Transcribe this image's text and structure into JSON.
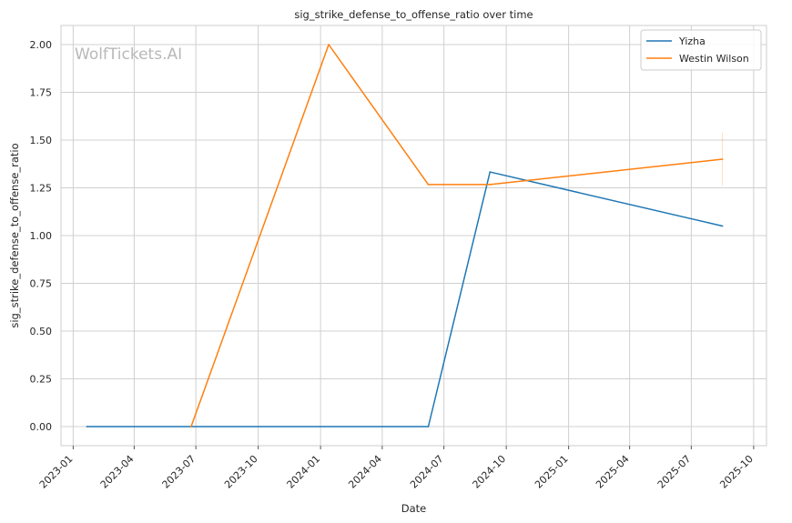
{
  "watermark": "WolfTickets.AI",
  "chart_data": {
    "type": "line",
    "title": "sig_strike_defense_to_offense_ratio over time",
    "xlabel": "Date",
    "ylabel": "sig_strike_defense_to_offense_ratio",
    "x_ticks": [
      "2023-01",
      "2023-04",
      "2023-07",
      "2023-10",
      "2024-01",
      "2024-04",
      "2024-07",
      "2024-10",
      "2025-01",
      "2025-04",
      "2025-07",
      "2025-10"
    ],
    "y_ticks": [
      "0.00",
      "0.25",
      "0.50",
      "0.75",
      "1.00",
      "1.25",
      "1.50",
      "1.75",
      "2.00"
    ],
    "xlim": [
      "2022-12-14",
      "2025-10-20"
    ],
    "ylim": [
      -0.1,
      2.1
    ],
    "grid": true,
    "legend_position": "top-right",
    "series": [
      {
        "name": "Yizha",
        "color": "#1f77b4",
        "points": [
          {
            "x": "2023-01-21",
            "y": 0.0
          },
          {
            "x": "2024-06-08",
            "y": 0.0
          },
          {
            "x": "2024-09-07",
            "y": 1.333
          },
          {
            "x": "2025-08-16",
            "y": 1.05
          }
        ]
      },
      {
        "name": "Westin Wilson",
        "color": "#ff7f0e",
        "points": [
          {
            "x": "2023-06-24",
            "y": 0.0
          },
          {
            "x": "2024-01-13",
            "y": 2.0
          },
          {
            "x": "2024-06-08",
            "y": 1.267
          },
          {
            "x": "2024-09-07",
            "y": 1.267
          },
          {
            "x": "2025-08-16",
            "y": 1.4
          }
        ],
        "error_bar": {
          "x": "2025-08-16",
          "low": 1.26,
          "high": 1.54
        }
      }
    ]
  }
}
